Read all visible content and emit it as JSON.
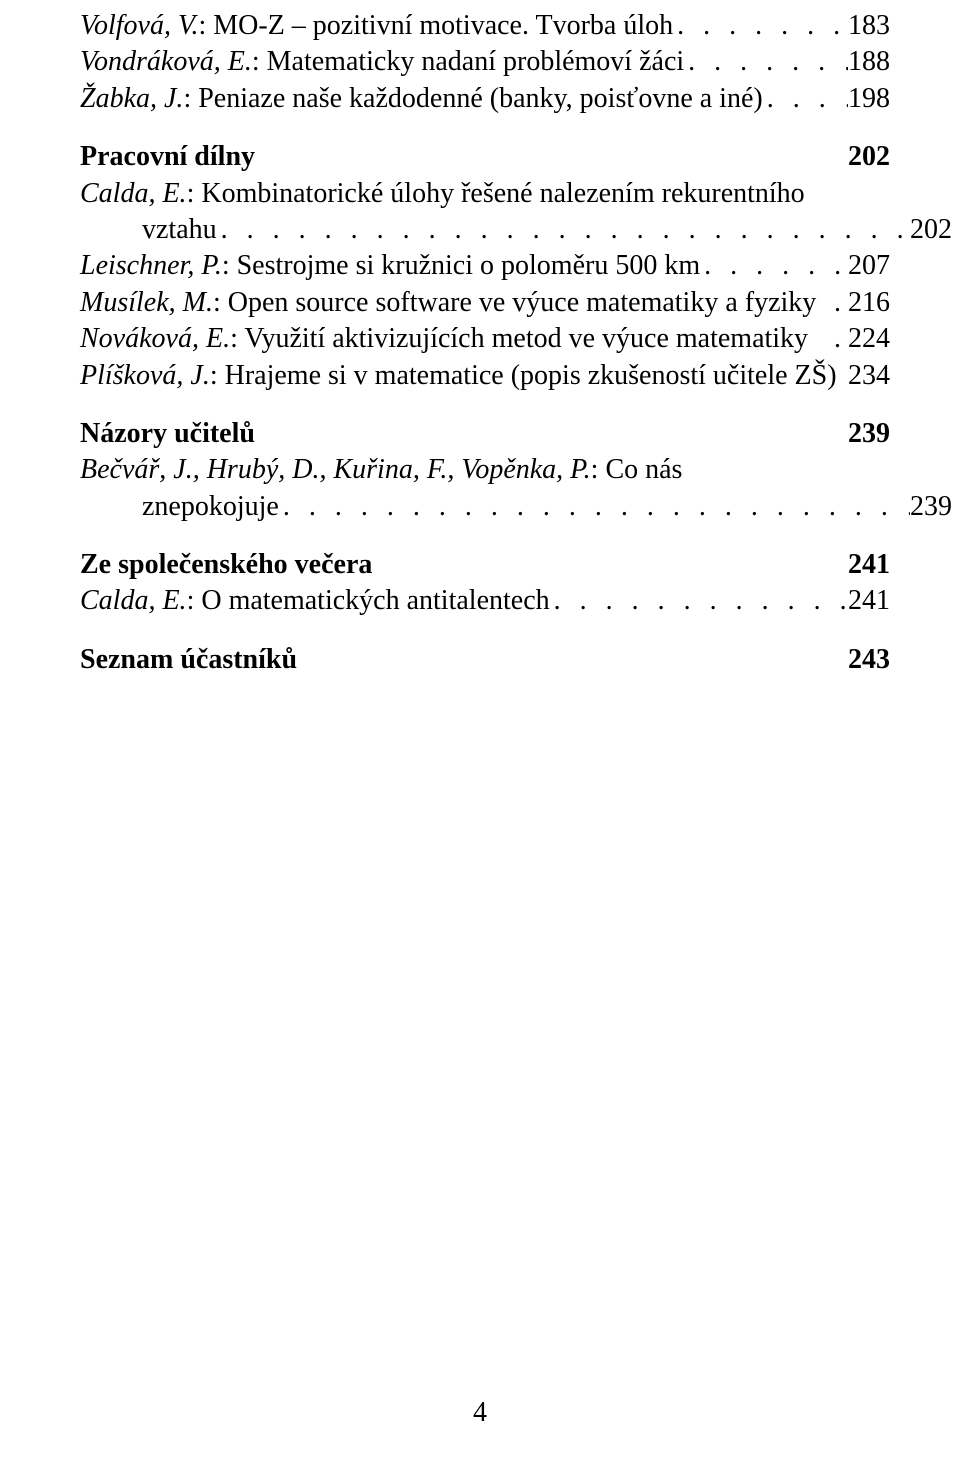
{
  "entries_top": [
    {
      "author": "Volfová, V.",
      "title": ": MO-Z – pozitivní motivace. Tvorba úloh",
      "page": "183"
    },
    {
      "author": "Vondráková, E.",
      "title": ": Matematicky nadaní problémoví žáci",
      "page": "188"
    },
    {
      "author": "Žabka, J.",
      "title": ": Peniaze naše každodenné (banky, poisťovne a iné)",
      "page": "198"
    }
  ],
  "section1": {
    "title": "Pracovní dílny",
    "page": "202"
  },
  "calda1": {
    "author": "Calda, E.",
    "title_line1": ": Kombinatorické úlohy řešené nalezením rekurentního",
    "title_line2": "vztahu",
    "page": "202"
  },
  "entries_section1": [
    {
      "author": "Leischner, P.",
      "title": ": Sestrojme si kružnici o poloměru 500 km",
      "page": "207"
    },
    {
      "author": "Musílek, M.",
      "title": ": Open source software ve výuce matematiky a fyziky",
      "page_nodots": "216"
    },
    {
      "author": "Nováková, E.",
      "title": ": Využití aktivizujících metod ve výuce matematiky",
      "page_nodots": "224"
    },
    {
      "author": "Plíšková, J.",
      "title": ": Hrajeme si v matematice (popis zkušeností učitele ZŠ)",
      "page_space": "234"
    }
  ],
  "section2": {
    "title": "Názory učitelů",
    "page": "239"
  },
  "becvar": {
    "author_line1": "Bečvář, J., Hrubý, D., Kuřina, F., Vopěnka, P.",
    "title_line1": ": Co nás",
    "title_line2": "znepokojuje",
    "page": "239"
  },
  "section3": {
    "title": "Ze společenského večera",
    "page": "241"
  },
  "entries_section3": [
    {
      "author": "Calda, E.",
      "title": ": O matematických antitalentech",
      "page": "241"
    }
  ],
  "section4": {
    "title": "Seznam účastníků",
    "page": "243"
  },
  "page_number": "4",
  "dots": ". . . . . . . . . . . . . . . . . . . . . . . . . . . . . . . . . . . . . . . . . . . . . . . . . . . . . . . . . . . . . ."
}
